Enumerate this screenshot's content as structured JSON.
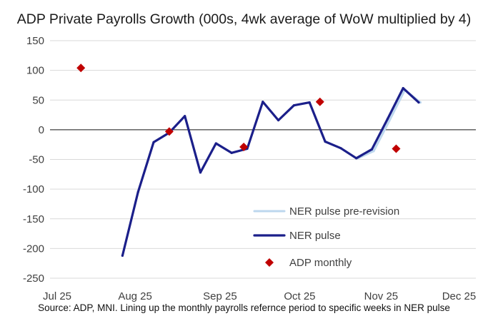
{
  "chart_data": {
    "type": "line",
    "title": "ADP Private Payrolls Growth (000s, 4wk average of WoW multiplied by 4)",
    "source": "Source: ADP, MNI. Lining up the monthly payrolls refernce period to specific weeks in NER pulse",
    "xlabel": "",
    "ylabel": "",
    "ylim": [
      -250,
      150
    ],
    "yticks": [
      150,
      100,
      50,
      0,
      -50,
      -100,
      -150,
      -200,
      -250
    ],
    "x_tick_labels": [
      "Jul 25",
      "Aug 25",
      "Sep 25",
      "Oct 25",
      "Nov 25",
      "Dec 25"
    ],
    "x_unit": "weeks since start of Jul 25 (one tick per month)",
    "x_ticks": [
      0,
      4.5,
      9.4,
      14.0,
      18.7,
      23.2
    ],
    "xlim": [
      0,
      24.5
    ],
    "grid": "horizontal",
    "legend_position": "bottom-right",
    "series": [
      {
        "name": "NER pulse pre-revision",
        "style": "line",
        "color": "#bdd7ee",
        "points": [
          {
            "x": 17.7,
            "y": -48
          },
          {
            "x": 18.6,
            "y": -36
          },
          {
            "x": 19.5,
            "y": 15
          },
          {
            "x": 20.4,
            "y": 67
          },
          {
            "x": 21.3,
            "y": 46
          }
        ]
      },
      {
        "name": "NER pulse",
        "style": "line",
        "color": "#1b1f8a",
        "points": [
          {
            "x": 4.1,
            "y": -212
          },
          {
            "x": 5.0,
            "y": -105
          },
          {
            "x": 5.9,
            "y": -21
          },
          {
            "x": 6.8,
            "y": -5
          },
          {
            "x": 7.7,
            "y": 23
          },
          {
            "x": 8.6,
            "y": -72
          },
          {
            "x": 9.5,
            "y": -23
          },
          {
            "x": 10.4,
            "y": -39
          },
          {
            "x": 11.3,
            "y": -32
          },
          {
            "x": 12.2,
            "y": 47
          },
          {
            "x": 13.1,
            "y": 16
          },
          {
            "x": 14.0,
            "y": 41
          },
          {
            "x": 14.9,
            "y": 46
          },
          {
            "x": 15.8,
            "y": -20
          },
          {
            "x": 16.7,
            "y": -31
          },
          {
            "x": 17.6,
            "y": -48
          },
          {
            "x": 18.5,
            "y": -33
          },
          {
            "x": 19.4,
            "y": 18
          },
          {
            "x": 20.3,
            "y": 70
          },
          {
            "x": 21.2,
            "y": 46
          }
        ]
      },
      {
        "name": "ADP monthly",
        "style": "marker",
        "color": "#c00000",
        "points": [
          {
            "x": 1.7,
            "y": 104
          },
          {
            "x": 6.8,
            "y": -3
          },
          {
            "x": 11.1,
            "y": -29
          },
          {
            "x": 15.5,
            "y": 47
          },
          {
            "x": 19.9,
            "y": -32
          }
        ]
      }
    ]
  },
  "colors": {
    "gridline": "#d9d9d9",
    "zero_line": "#404040"
  }
}
